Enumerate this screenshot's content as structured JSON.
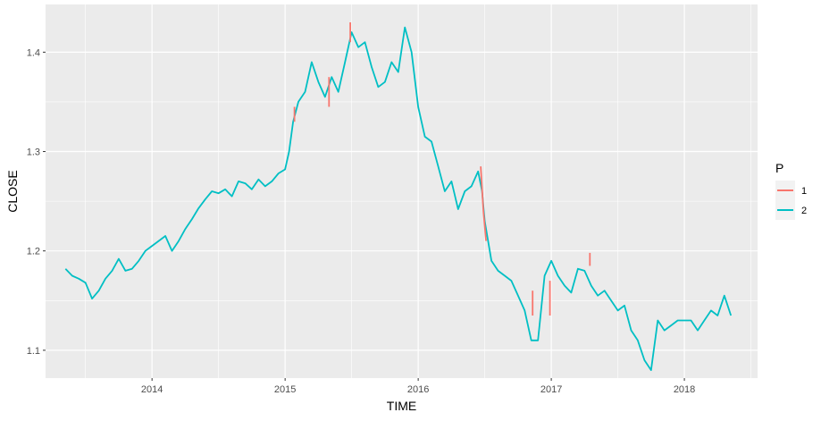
{
  "chart_data": {
    "type": "line",
    "title": "",
    "xlabel": "TIME",
    "ylabel": "CLOSE",
    "xlim": [
      2013.2,
      2018.55
    ],
    "ylim": [
      1.072,
      1.448
    ],
    "xticks": [
      2014,
      2015,
      2016,
      2017,
      2018
    ],
    "xtick_labels": [
      "2014",
      "2015",
      "2016",
      "2017",
      "2018"
    ],
    "yticks": [
      1.1,
      1.2,
      1.3,
      1.4
    ],
    "ytick_labels": [
      "1.1",
      "1.2",
      "1.3",
      "1.4"
    ],
    "grid": true,
    "legend": {
      "title": "P",
      "placement": "right",
      "entries": [
        {
          "label": "1",
          "color": "#F8766D"
        },
        {
          "label": "2",
          "color": "#00BFC4"
        }
      ]
    },
    "series": [
      {
        "name": "2",
        "color": "#00BFC4",
        "x": [
          2013.35,
          2013.4,
          2013.45,
          2013.5,
          2013.55,
          2013.6,
          2013.65,
          2013.7,
          2013.75,
          2013.8,
          2013.85,
          2013.9,
          2013.95,
          2014.0,
          2014.05,
          2014.1,
          2014.15,
          2014.2,
          2014.25,
          2014.3,
          2014.35,
          2014.4,
          2014.45,
          2014.5,
          2014.55,
          2014.6,
          2014.65,
          2014.7,
          2014.75,
          2014.8,
          2014.85,
          2014.9,
          2014.95,
          2015.0,
          2015.03,
          2015.06,
          2015.1,
          2015.15,
          2015.2,
          2015.25,
          2015.3,
          2015.35,
          2015.4,
          2015.45,
          2015.5,
          2015.55,
          2015.6,
          2015.65,
          2015.7,
          2015.75,
          2015.8,
          2015.85,
          2015.9,
          2015.95,
          2016.0,
          2016.05,
          2016.1,
          2016.15,
          2016.2,
          2016.25,
          2016.3,
          2016.35,
          2016.4,
          2016.45,
          2016.48,
          2016.5,
          2016.55,
          2016.6,
          2016.65,
          2016.7,
          2016.75,
          2016.8,
          2016.85,
          2016.9,
          2016.95,
          2017.0,
          2017.05,
          2017.1,
          2017.15,
          2017.2,
          2017.25,
          2017.3,
          2017.35,
          2017.4,
          2017.45,
          2017.5,
          2017.55,
          2017.6,
          2017.65,
          2017.7,
          2017.75,
          2017.8,
          2017.85,
          2017.9,
          2017.95,
          2018.0,
          2018.05,
          2018.1,
          2018.15,
          2018.2,
          2018.25,
          2018.3,
          2018.35
        ],
        "values": [
          1.182,
          1.175,
          1.172,
          1.168,
          1.152,
          1.16,
          1.172,
          1.18,
          1.192,
          1.18,
          1.182,
          1.19,
          1.2,
          1.205,
          1.21,
          1.215,
          1.2,
          1.21,
          1.222,
          1.232,
          1.243,
          1.252,
          1.26,
          1.258,
          1.262,
          1.255,
          1.27,
          1.268,
          1.262,
          1.272,
          1.265,
          1.27,
          1.278,
          1.282,
          1.3,
          1.33,
          1.35,
          1.36,
          1.39,
          1.37,
          1.355,
          1.375,
          1.36,
          1.39,
          1.42,
          1.405,
          1.41,
          1.385,
          1.365,
          1.37,
          1.39,
          1.38,
          1.425,
          1.4,
          1.345,
          1.315,
          1.31,
          1.285,
          1.26,
          1.27,
          1.242,
          1.26,
          1.265,
          1.28,
          1.26,
          1.23,
          1.19,
          1.18,
          1.175,
          1.17,
          1.155,
          1.14,
          1.11,
          1.11,
          1.175,
          1.19,
          1.175,
          1.165,
          1.158,
          1.182,
          1.18,
          1.165,
          1.155,
          1.16,
          1.15,
          1.14,
          1.145,
          1.12,
          1.11,
          1.09,
          1.08,
          1.13,
          1.12,
          1.125,
          1.13,
          1.13,
          1.13,
          1.12,
          1.13,
          1.14,
          1.135,
          1.155,
          1.135
        ]
      },
      {
        "name": "1",
        "color": "#F8766D",
        "segments": [
          {
            "x": [
              2015.07,
              2015.07
            ],
            "values": [
              1.33,
              1.345
            ]
          },
          {
            "x": [
              2015.33,
              2015.33
            ],
            "values": [
              1.345,
              1.375
            ]
          },
          {
            "x": [
              2015.49,
              2015.49
            ],
            "values": [
              1.41,
              1.43
            ]
          },
          {
            "x": [
              2016.47,
              2016.49,
              2016.51
            ],
            "values": [
              1.285,
              1.24,
              1.21
            ]
          },
          {
            "x": [
              2016.86,
              2016.86
            ],
            "values": [
              1.135,
              1.16
            ]
          },
          {
            "x": [
              2016.99,
              2016.99
            ],
            "values": [
              1.135,
              1.17
            ]
          },
          {
            "x": [
              2017.29,
              2017.29
            ],
            "values": [
              1.185,
              1.198
            ]
          }
        ]
      }
    ]
  }
}
